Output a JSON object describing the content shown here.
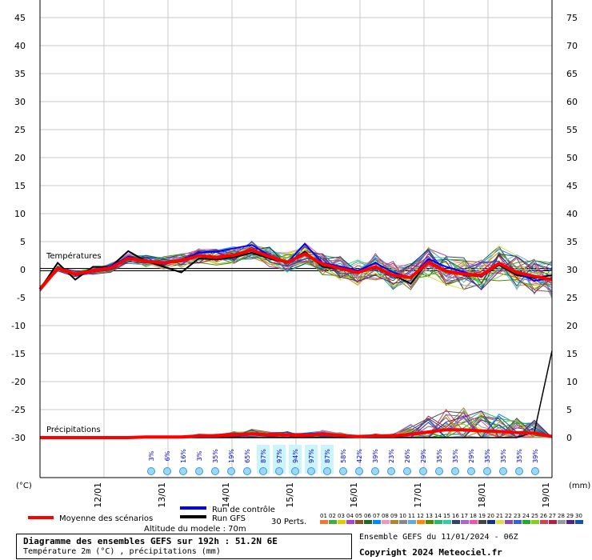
{
  "chart_data": {
    "type": "line",
    "temp_axis": {
      "unit_label": "(°C)",
      "ticks": [
        45,
        40,
        35,
        30,
        25,
        20,
        15,
        10,
        5,
        0,
        -5,
        -10,
        -15,
        -20,
        -25,
        -30
      ],
      "range": [
        -30,
        45
      ]
    },
    "precip_axis": {
      "unit_label": "(mm)",
      "ticks": [
        75,
        70,
        65,
        60,
        55,
        50,
        45,
        40,
        35,
        30,
        25,
        20,
        15,
        10,
        5,
        0
      ],
      "range": [
        0,
        75
      ]
    },
    "x_ticks": [
      "12/01",
      "13/01",
      "14/01",
      "15/01",
      "16/01",
      "17/01",
      "18/01",
      "19/01"
    ],
    "section_labels": {
      "temperature": "Températures",
      "precipitation": "Précipitations"
    },
    "series": [
      {
        "name": "Moyenne des scénarios",
        "color": "#ff0000",
        "temp": [
          -3.5,
          0.2,
          -0.8,
          -0.2,
          0.3,
          2,
          1.5,
          1.2,
          1.6,
          2.5,
          2.2,
          2.6,
          3.5,
          2.3,
          1.3,
          2.8,
          1,
          0.2,
          -0.5,
          0.5,
          -1,
          -1.4,
          1.3,
          -0.3,
          -0.8,
          -1,
          1.1,
          -0.5,
          -1.2,
          -1.8
        ]
      },
      {
        "name": "Run de contrôle",
        "color": "#0000ff",
        "temp": [
          -3.5,
          0.4,
          -1,
          -0.3,
          0.6,
          2.3,
          1.5,
          1,
          1.7,
          3,
          3.2,
          3.8,
          4.4,
          2.5,
          1.2,
          4.6,
          1.2,
          0.6,
          -0.2,
          1.2,
          -0.5,
          -1.5,
          1.9,
          0.5,
          -0.4,
          -1.3,
          1.2,
          -0.5,
          -2,
          -1.5
        ]
      },
      {
        "name": "Run GFS",
        "color": "#000000",
        "temp": [
          -3.5,
          1.2,
          -1.8,
          0.5,
          0.5,
          3.3,
          1.5,
          0.5,
          -0.5,
          2,
          1.8,
          2.2,
          3,
          2,
          1.2,
          3.2,
          0.5,
          0.1,
          -0.3,
          0.5,
          -1,
          -2.5,
          1.5,
          -0.2,
          -1,
          -1.2,
          0.8,
          -1,
          -1.5,
          -1
        ]
      }
    ],
    "mean_precip": [
      0,
      0,
      0,
      0,
      0,
      0,
      0.1,
      0.1,
      0.1,
      0.3,
      0.3,
      0.5,
      0.7,
      0.5,
      0.5,
      0.4,
      0.6,
      0.4,
      0.2,
      0.3,
      0.3,
      0.6,
      1,
      1.4,
      1.4,
      1.2,
      1.1,
      0.9,
      0.8,
      0.2
    ],
    "gfs_precip": [
      0,
      0,
      0,
      0,
      0,
      0,
      0,
      0,
      0,
      0,
      0,
      0,
      0,
      0,
      0,
      0,
      0,
      0,
      0,
      0,
      0,
      0,
      0,
      0,
      0,
      0,
      0,
      0,
      1,
      15.5
    ],
    "snow_probabilities": [
      "3%",
      "6%",
      "16%",
      "3%",
      "35%",
      "19%",
      "65%",
      "87%",
      "97%",
      "94%",
      "97%",
      "87%",
      "58%",
      "42%",
      "39%",
      "23%",
      "26%",
      "29%",
      "35%",
      "35%",
      "29%",
      "35%",
      "35%",
      "35%",
      "39%"
    ],
    "legend_labels": {
      "mean": "Moyenne des scénarios",
      "control": "Run de contrôle",
      "gfs": "Run GFS",
      "perts": "30 Perts."
    },
    "pert_numbers": [
      "01",
      "02",
      "03",
      "04",
      "05",
      "06",
      "07",
      "08",
      "09",
      "10",
      "11",
      "12",
      "13",
      "14",
      "15",
      "16",
      "17",
      "18",
      "19",
      "20",
      "21",
      "22",
      "23",
      "24",
      "25",
      "26",
      "27",
      "28",
      "29",
      "30"
    ],
    "pert_colors": [
      "#ee7733",
      "#44aa44",
      "#ddcc00",
      "#aa44cc",
      "#885522",
      "#226622",
      "#0088ff",
      "#ee99bb",
      "#aa8833",
      "#888888",
      "#66aadd",
      "#ff8800",
      "#558800",
      "#22bb66",
      "#33ccaa",
      "#334466",
      "#aa66cc",
      "#ee55aa",
      "#444444",
      "#113388",
      "#dddd44",
      "#9944aa",
      "#3366cc",
      "#22aa22",
      "#88cc22",
      "#cc4455",
      "#aa2244",
      "#999999",
      "#552288",
      "#1155aa"
    ],
    "altitude": "Altitude du modele : 70m"
  },
  "footer": {
    "title": "Diagramme des ensembles GEFS sur 192h : 51.2N 6E",
    "subtitle": "Température 2m (°C) , précipitations (mm)",
    "run": "Ensemble GEFS du 11/01/2024 - 06Z",
    "copyright": "Copyright 2024 Meteociel.fr"
  }
}
